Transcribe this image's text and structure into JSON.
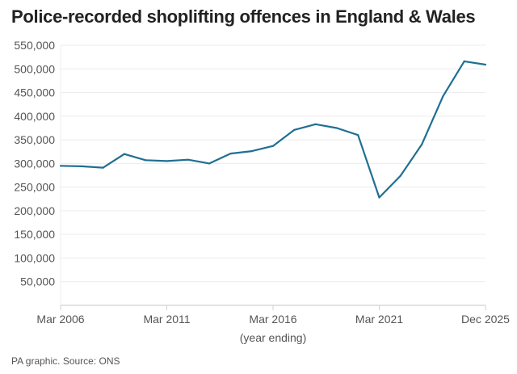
{
  "chart_data": {
    "type": "line",
    "title": "Police-recorded shoplifting offences in England & Wales",
    "xlabel": "(year ending)",
    "ylabel": "",
    "categories": [
      "Mar 2006",
      "Mar 2007",
      "Mar 2008",
      "Mar 2009",
      "Mar 2010",
      "Mar 2011",
      "Mar 2012",
      "Mar 2013",
      "Mar 2014",
      "Mar 2015",
      "Mar 2016",
      "Mar 2017",
      "Mar 2018",
      "Mar 2019",
      "Mar 2020",
      "Mar 2021",
      "Mar 2022",
      "Mar 2023",
      "Mar 2024",
      "Mar 2025",
      "Dec 2025"
    ],
    "values": [
      295000,
      294000,
      291000,
      320000,
      307000,
      305000,
      308000,
      300000,
      321000,
      326000,
      337000,
      371000,
      383000,
      375000,
      360000,
      228000,
      274000,
      340000,
      442000,
      516000,
      509000
    ],
    "x_tick_labels": [
      "Mar 2006",
      "Mar 2011",
      "Mar 2016",
      "Mar 2021",
      "Dec 2025"
    ],
    "y_tick_labels": [
      "50,000",
      "100,000",
      "150,000",
      "200,000",
      "250,000",
      "300,000",
      "350,000",
      "400,000",
      "450,000",
      "500,000",
      "550,000"
    ],
    "ylim": [
      0,
      550000
    ],
    "grid": true,
    "line_color": "#1f6f93"
  },
  "footer": "PA graphic. Source: ONS"
}
